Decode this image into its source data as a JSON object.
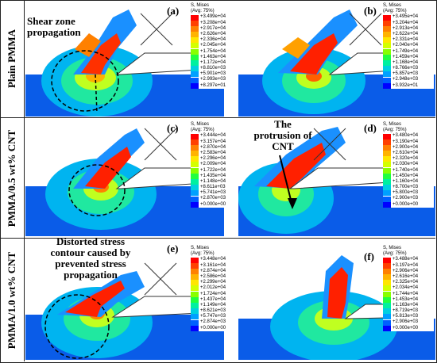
{
  "row_labels": [
    "Plain PMMA",
    "PMMA/0.5 wt% CNT",
    "PMMA/1.0 wt% CNT"
  ],
  "colors": [
    "#ff0000",
    "#ff4000",
    "#ff8000",
    "#ffb300",
    "#ffe600",
    "#d4ff00",
    "#88ff00",
    "#20ff40",
    "#00f0a0",
    "#00d0e0",
    "#00a0ff",
    "#0060ff",
    "#0000ff"
  ],
  "annotations": {
    "shear_line1": "Shear zone",
    "shear_line2": "propagation",
    "protrusion_line1": "The",
    "protrusion_line2": "protrusion of",
    "protrusion_line3": "CNT",
    "distorted_line1": "Distorted stress",
    "distorted_line2": "contour caused by",
    "distorted_line3": "prevented stress",
    "distorted_line4": "propagation"
  },
  "panels": [
    {
      "label": "(a)",
      "title": "S, Mises",
      "avg": "(Avg: 75%)",
      "values": [
        "+3.499e+04",
        "+3.208e+04",
        "+2.917e+04",
        "+2.626e+04",
        "+2.336e+04",
        "+2.045e+04",
        "+1.754e+04",
        "+1.463e+04",
        "+1.172e+04",
        "+8.810e+03",
        "+5.901e+03",
        "+2.993e+03",
        "+8.297e+01"
      ]
    },
    {
      "label": "(b)",
      "title": "S, Mises",
      "avg": "(Avg: 75%)",
      "values": [
        "+3.495e+04",
        "+3.204e+04",
        "+2.913e+04",
        "+2.622e+04",
        "+2.331e+04",
        "+2.040e+04",
        "+1.749e+04",
        "+1.459e+04",
        "+1.168e+04",
        "+8.766e+03",
        "+5.857e+03",
        "+2.948e+03",
        "+3.932e+01"
      ]
    },
    {
      "label": "(c)",
      "title": "S, Mises",
      "avg": "(Avg: 75%)",
      "values": [
        "+3.444e+04",
        "+3.157e+04",
        "+2.870e+04",
        "+2.583e+04",
        "+2.296e+04",
        "+2.009e+04",
        "+1.722e+04",
        "+1.435e+04",
        "+1.148e+04",
        "+8.611e+03",
        "+5.741e+03",
        "+2.870e+03",
        "+0.000e+00"
      ]
    },
    {
      "label": "(d)",
      "title": "S, Mises",
      "avg": "(Avg: 75%)",
      "values": [
        "+3.480e+04",
        "+3.190e+04",
        "+2.900e+04",
        "+2.610e+04",
        "+2.320e+04",
        "+2.030e+04",
        "+1.740e+04",
        "+1.450e+04",
        "+1.160e+04",
        "+8.700e+03",
        "+5.800e+03",
        "+2.900e+03",
        "+0.000e+00"
      ]
    },
    {
      "label": "(e)",
      "title": "S, Mises",
      "avg": "(Avg: 75%)",
      "values": [
        "+3.448e+04",
        "+3.161e+04",
        "+2.874e+04",
        "+2.586e+04",
        "+2.299e+04",
        "+2.012e+04",
        "+1.724e+04",
        "+1.437e+04",
        "+1.149e+04",
        "+8.621e+03",
        "+5.747e+03",
        "+2.874e+03",
        "+0.000e+00"
      ]
    },
    {
      "label": "(f)",
      "title": "S, Mises",
      "avg": "(Avg: 75%)",
      "values": [
        "+3.488e+04",
        "+3.197e+04",
        "+2.906e+04",
        "+2.616e+04",
        "+2.325e+04",
        "+2.034e+04",
        "+1.744e+04",
        "+1.453e+04",
        "+1.163e+04",
        "+8.719e+03",
        "+5.813e+03",
        "+2.906e+03",
        "+0.000e+00"
      ]
    }
  ]
}
